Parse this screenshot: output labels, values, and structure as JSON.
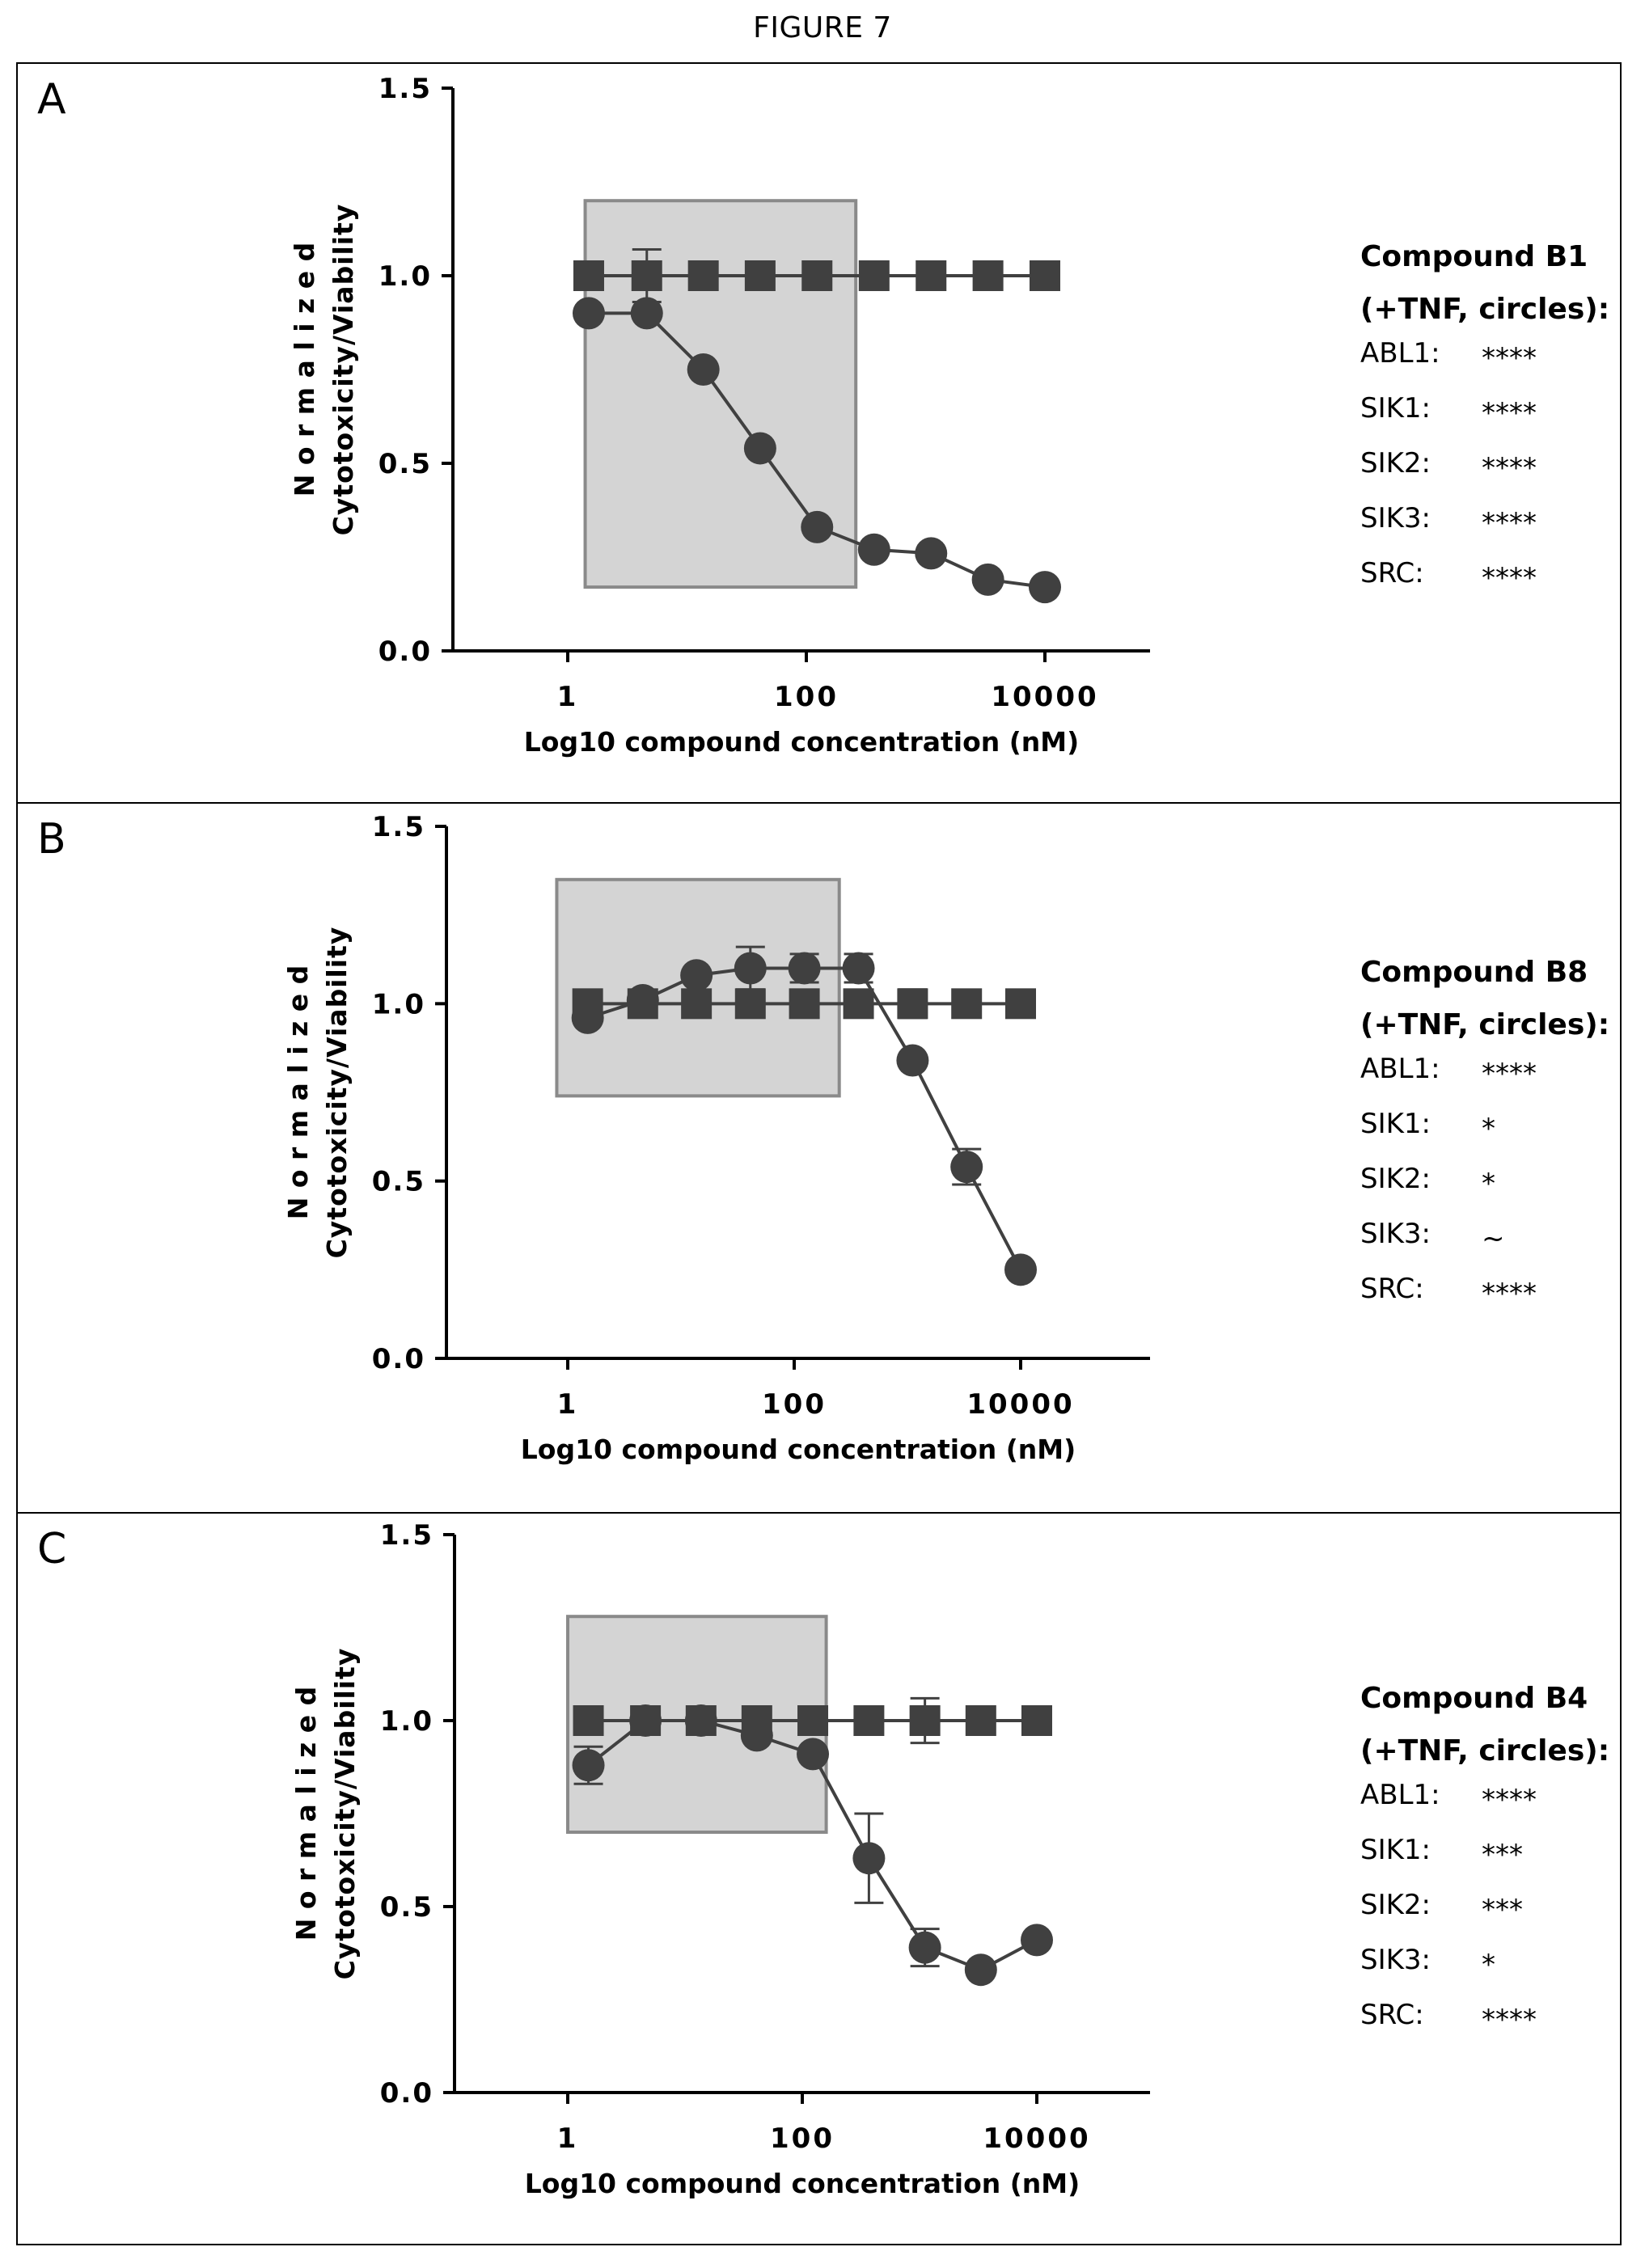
{
  "figure_title": "FIGURE 7",
  "chart_data": [
    {
      "type": "line",
      "panel_label": "A",
      "ylabel_line1": "N o r m a l i z e d",
      "ylabel_line2": "Cytotoxicity/Viability",
      "xlabel": "Log10 compound concentration (nM)",
      "x_scale": "log",
      "xlim": [
        0.1,
        100000
      ],
      "ylim": [
        0,
        1.5
      ],
      "x_ticks": [
        {
          "value": 1,
          "label": "1"
        },
        {
          "value": 100,
          "label": "100"
        },
        {
          "value": 10000,
          "label": "10000"
        }
      ],
      "y_ticks": [
        {
          "value": 0,
          "label": "0.0"
        },
        {
          "value": 0.5,
          "label": "0.5"
        },
        {
          "value": 1.0,
          "label": "1.0"
        },
        {
          "value": 1.5,
          "label": "1.5"
        }
      ],
      "highlight_box": {
        "x": [
          1.4,
          260
        ],
        "y": [
          0.17,
          1.2
        ]
      },
      "series": [
        {
          "marker": "square",
          "x": [
            1.5,
            4.6,
            13.7,
            41,
            123,
            370,
            1111,
            3333,
            10000
          ],
          "y": [
            1.0,
            1.0,
            1.0,
            1.0,
            1.0,
            1.0,
            1.0,
            1.0,
            1.0
          ],
          "err": [
            0,
            0.07,
            0,
            0,
            0,
            0,
            0,
            0,
            0
          ]
        },
        {
          "marker": "circle",
          "x": [
            1.5,
            4.6,
            13.7,
            41,
            123,
            370,
            1111,
            3333,
            10000
          ],
          "y": [
            0.9,
            0.9,
            0.75,
            0.54,
            0.33,
            0.27,
            0.26,
            0.19,
            0.17
          ],
          "err": [
            0,
            0,
            0,
            0,
            0,
            0,
            0,
            0,
            0
          ]
        }
      ],
      "legend": {
        "compound": "Compound B1",
        "condition": "(+TNF, circles):",
        "rows": [
          {
            "target": "ABL1:",
            "value": "****"
          },
          {
            "target": "SIK1:",
            "value": "****"
          },
          {
            "target": "SIK2:",
            "value": "****"
          },
          {
            "target": "SIK3:",
            "value": "****"
          },
          {
            "target": "SRC:",
            "value": "****"
          }
        ]
      }
    },
    {
      "type": "line",
      "panel_label": "B",
      "ylabel_line1": "N o r m a l i z e d",
      "ylabel_line2": "Cytotoxicity/Viability",
      "xlabel": "Log10 compound concentration (nM)",
      "x_scale": "log",
      "xlim": [
        0.1,
        100000
      ],
      "ylim": [
        0,
        1.5
      ],
      "x_ticks": [
        {
          "value": 1,
          "label": "1"
        },
        {
          "value": 100,
          "label": "100"
        },
        {
          "value": 10000,
          "label": "10000"
        }
      ],
      "y_ticks": [
        {
          "value": 0,
          "label": "0.0"
        },
        {
          "value": 0.5,
          "label": "0.5"
        },
        {
          "value": 1.0,
          "label": "1.0"
        },
        {
          "value": 1.5,
          "label": "1.5"
        }
      ],
      "highlight_box": {
        "x": [
          0.8,
          250
        ],
        "y": [
          0.74,
          1.35
        ]
      },
      "series": [
        {
          "marker": "square",
          "x": [
            1.5,
            4.6,
            13.7,
            41,
            123,
            370,
            1111,
            3333,
            10000
          ],
          "y": [
            1.0,
            1.0,
            1.0,
            1.0,
            1.0,
            1.0,
            1.0,
            1.0,
            1.0
          ],
          "err": [
            0,
            0,
            0,
            0,
            0,
            0,
            0.04,
            0,
            0
          ]
        },
        {
          "marker": "circle",
          "x": [
            1.5,
            4.6,
            13.7,
            41,
            123,
            370,
            1111,
            3333,
            10000
          ],
          "y": [
            0.96,
            1.01,
            1.08,
            1.1,
            1.1,
            1.1,
            0.84,
            0.54,
            0.25
          ],
          "err": [
            0,
            0,
            0,
            0.06,
            0.04,
            0.04,
            0,
            0.05,
            0
          ]
        }
      ],
      "legend": {
        "compound": "Compound B8",
        "condition": "(+TNF, circles):",
        "rows": [
          {
            "target": "ABL1:",
            "value": "****"
          },
          {
            "target": "SIK1:",
            "value": "*"
          },
          {
            "target": "SIK2:",
            "value": "*"
          },
          {
            "target": "SIK3:",
            "value": "~"
          },
          {
            "target": "SRC:",
            "value": "****"
          }
        ]
      }
    },
    {
      "type": "line",
      "panel_label": "C",
      "ylabel_line1": "N o r m a l i z e d",
      "ylabel_line2": "Cytotoxicity/Viability",
      "xlabel": "Log10 compound concentration (nM)",
      "x_scale": "log",
      "xlim": [
        0.1,
        100000
      ],
      "ylim": [
        0,
        1.5
      ],
      "x_ticks": [
        {
          "value": 1,
          "label": "1"
        },
        {
          "value": 100,
          "label": "100"
        },
        {
          "value": 10000,
          "label": "10000"
        }
      ],
      "y_ticks": [
        {
          "value": 0,
          "label": "0.0"
        },
        {
          "value": 0.5,
          "label": "0.5"
        },
        {
          "value": 1.0,
          "label": "1.0"
        },
        {
          "value": 1.5,
          "label": "1.5"
        }
      ],
      "highlight_box": {
        "x": [
          1.0,
          160
        ],
        "y": [
          0.7,
          1.28
        ]
      },
      "series": [
        {
          "marker": "square",
          "x": [
            1.5,
            4.6,
            13.7,
            41,
            123,
            370,
            1111,
            3333,
            10000
          ],
          "y": [
            1.0,
            1.0,
            1.0,
            1.0,
            1.0,
            1.0,
            1.0,
            1.0,
            1.0
          ],
          "err": [
            0,
            0,
            0,
            0,
            0,
            0,
            0.06,
            0,
            0
          ]
        },
        {
          "marker": "circle",
          "x": [
            1.5,
            4.6,
            13.7,
            41,
            123,
            370,
            1111,
            3333,
            10000
          ],
          "y": [
            0.88,
            1.0,
            1.0,
            0.96,
            0.91,
            0.63,
            0.39,
            0.33,
            0.41
          ],
          "err": [
            0.05,
            0,
            0,
            0,
            0,
            0.12,
            0.05,
            0,
            0
          ]
        }
      ],
      "legend": {
        "compound": "Compound B4",
        "condition": "(+TNF, circles):",
        "rows": [
          {
            "target": "ABL1:",
            "value": "****"
          },
          {
            "target": "SIK1:",
            "value": "***"
          },
          {
            "target": "SIK2:",
            "value": "***"
          },
          {
            "target": "SIK3:",
            "value": "*"
          },
          {
            "target": "SRC:",
            "value": "****"
          }
        ]
      }
    }
  ]
}
